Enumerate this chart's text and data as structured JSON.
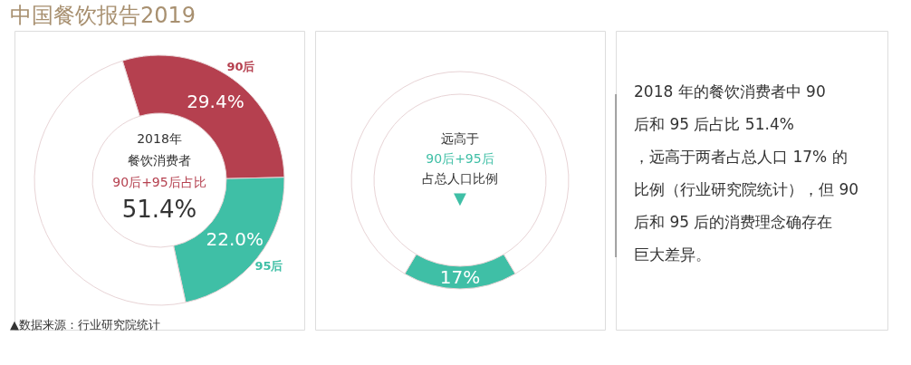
{
  "chart_data": [
    {
      "type": "donut",
      "title": "中国餐饮报告2019",
      "categories": [
        "90后",
        "95后",
        null
      ],
      "values": [
        29.4,
        22.0,
        48.6
      ],
      "colors": [
        "#b5404f",
        "#3fbfa6",
        "#ffffff"
      ],
      "value_labels": [
        "29.4%",
        "22.0%",
        null
      ],
      "annotations": [
        "2018年",
        "餐饮消费者",
        "90后+95后占比",
        "51.4%",
        "▲数据来源：行业研究院统计"
      ]
    },
    {
      "type": "donut",
      "categories": [
        null,
        null
      ],
      "values": [
        17,
        83
      ],
      "colors": [
        "#3fbfa6",
        "#ffffff"
      ],
      "value_labels": [
        "17%",
        null
      ],
      "annotations": [
        "远高于",
        "90后+95后",
        "占总人口比例",
        "▼"
      ]
    },
    {
      "type": "other",
      "annotations": [
        "2018 年的餐饮消费者中 90 后和 95 后占比 51.4%，远高于两者占总人口 17% 的比例（行业研究院统计），但 90 后和 95 后的消费理念确存在巨大差异。"
      ]
    }
  ]
}
